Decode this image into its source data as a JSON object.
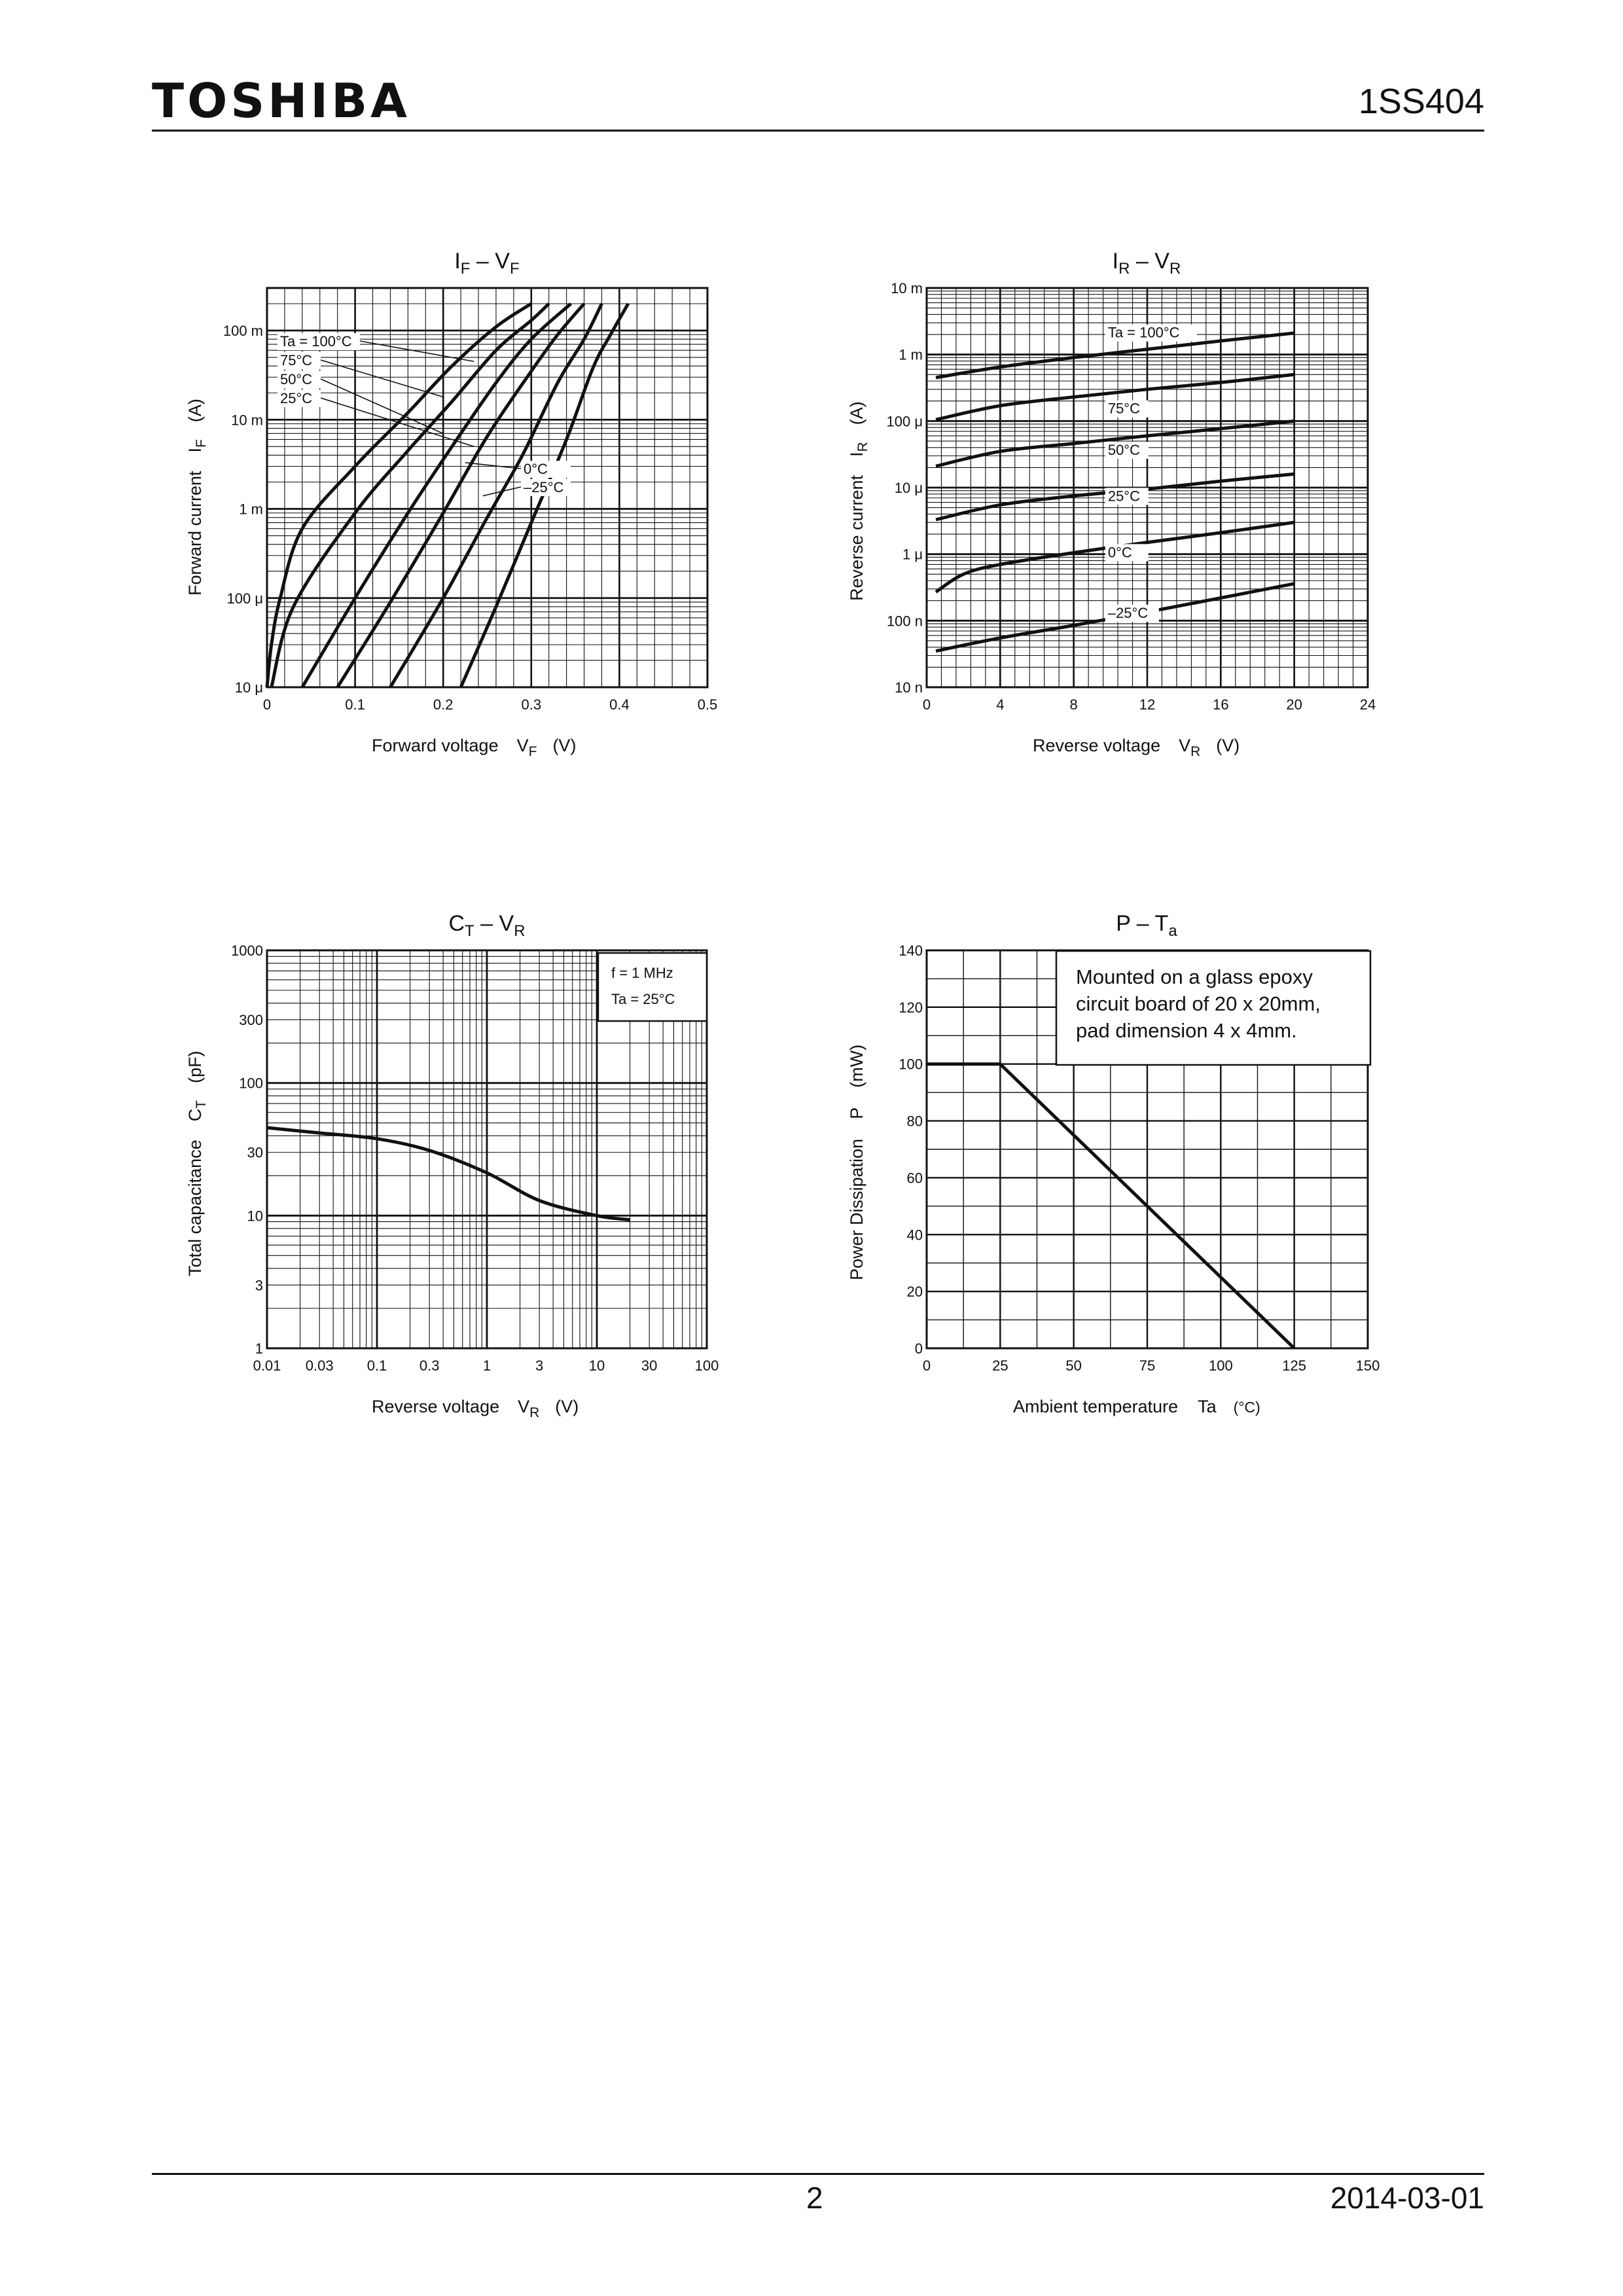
{
  "header": {
    "logo": "TOSHIBA",
    "part_number": "1SS404"
  },
  "footer": {
    "page": "2",
    "date": "2014-03-01"
  },
  "charts": {
    "if_vf": {
      "title_main": "I",
      "title_sub": "F",
      "title_dash": " – ",
      "title_main2": "V",
      "title_sub2": "F",
      "xlabel": "Forward voltage",
      "xsym": "V",
      "xsym_sub": "F",
      "xunit": "(V)",
      "ylabel": "Forward current",
      "ysym": "I",
      "ysym_sub": "F",
      "yunit": "(A)"
    },
    "ir_vr": {
      "title_main": "I",
      "title_sub": "R",
      "title_dash": " – ",
      "title_main2": "V",
      "title_sub2": "R",
      "xlabel": "Reverse voltage",
      "xsym": "V",
      "xsym_sub": "R",
      "xunit": "(V)",
      "ylabel": "Reverse current",
      "ysym": "I",
      "ysym_sub": "R",
      "yunit": "(A)"
    },
    "ct_vr": {
      "title_main": "C",
      "title_sub": "T",
      "title_dash": " – ",
      "title_main2": "V",
      "title_sub2": "R",
      "xlabel": "Reverse voltage",
      "xsym": "V",
      "xsym_sub": "R",
      "xunit": "(V)",
      "ylabel": "Total capacitance",
      "ysym": "C",
      "ysym_sub": "T",
      "yunit": "(pF)",
      "note_line1": "f = 1 MHz",
      "note_line2": "Ta = 25°C"
    },
    "p_ta": {
      "title_main": "P – T",
      "title_sub": "a",
      "xlabel": "Ambient temperature",
      "xsym": "Ta",
      "xunit": "(°C)",
      "ylabel": "Power Dissipation",
      "ysym": "P",
      "yunit": "(mW)",
      "note_lines": [
        "Mounted on a glass epoxy",
        "circuit board of 20 x 20mm,",
        "pad dimension 4 x 4mm."
      ]
    }
  },
  "chart_data": [
    {
      "type": "line",
      "id": "if_vf",
      "x_scale": "linear",
      "y_scale": "log",
      "xlim": [
        0,
        0.5
      ],
      "ylim": [
        1e-05,
        0.3
      ],
      "x_ticks": [
        "0",
        "0.1",
        "0.2",
        "0.3",
        "0.4",
        "0.5"
      ],
      "y_ticks": [
        {
          "v": 1e-05,
          "label": "10 μ"
        },
        {
          "v": 0.0001,
          "label": "100 μ"
        },
        {
          "v": 0.001,
          "label": "1 m"
        },
        {
          "v": 0.01,
          "label": "10 m"
        },
        {
          "v": 0.1,
          "label": "100 m"
        }
      ],
      "grid": true,
      "series": [
        {
          "name": "Ta = 100°C",
          "points": [
            [
              0.0,
              1e-05
            ],
            [
              0.005,
              3e-05
            ],
            [
              0.015,
              0.0001
            ],
            [
              0.04,
              0.0006
            ],
            [
              0.1,
              0.003
            ],
            [
              0.16,
              0.012
            ],
            [
              0.21,
              0.04
            ],
            [
              0.26,
              0.11
            ],
            [
              0.3,
              0.2
            ]
          ]
        },
        {
          "name": "75°C",
          "points": [
            [
              0.005,
              1e-05
            ],
            [
              0.03,
              8e-05
            ],
            [
              0.1,
              0.0009
            ],
            [
              0.16,
              0.0045
            ],
            [
              0.21,
              0.016
            ],
            [
              0.26,
              0.06
            ],
            [
              0.3,
              0.13
            ],
            [
              0.32,
              0.2
            ]
          ]
        },
        {
          "name": "50°C",
          "points": [
            [
              0.04,
              1e-05
            ],
            [
              0.1,
              0.0001
            ],
            [
              0.16,
              0.0009
            ],
            [
              0.21,
              0.005
            ],
            [
              0.26,
              0.026
            ],
            [
              0.3,
              0.08
            ],
            [
              0.345,
              0.2
            ]
          ]
        },
        {
          "name": "25°C",
          "points": [
            [
              0.08,
              1e-05
            ],
            [
              0.14,
              9e-05
            ],
            [
              0.2,
              0.0009
            ],
            [
              0.25,
              0.0065
            ],
            [
              0.3,
              0.035
            ],
            [
              0.33,
              0.09
            ],
            [
              0.36,
              0.2
            ]
          ]
        },
        {
          "name": "0°C",
          "points": [
            [
              0.14,
              1e-05
            ],
            [
              0.2,
              0.0001
            ],
            [
              0.25,
              0.0008
            ],
            [
              0.29,
              0.004
            ],
            [
              0.33,
              0.026
            ],
            [
              0.36,
              0.08
            ],
            [
              0.38,
              0.2
            ]
          ]
        },
        {
          "name": "–25°C",
          "points": [
            [
              0.22,
              1e-05
            ],
            [
              0.26,
              8e-05
            ],
            [
              0.3,
              0.0007
            ],
            [
              0.34,
              0.006
            ],
            [
              0.37,
              0.038
            ],
            [
              0.39,
              0.09
            ],
            [
              0.41,
              0.2
            ]
          ]
        }
      ]
    },
    {
      "type": "line",
      "id": "ir_vr",
      "x_scale": "linear",
      "y_scale": "log",
      "xlim": [
        0,
        24
      ],
      "ylim": [
        1e-08,
        0.01
      ],
      "x_ticks": [
        "0",
        "4",
        "8",
        "12",
        "16",
        "20",
        "24"
      ],
      "y_ticks": [
        {
          "v": 1e-08,
          "label": "10 n"
        },
        {
          "v": 1e-07,
          "label": "100 n"
        },
        {
          "v": 1e-06,
          "label": "1 μ"
        },
        {
          "v": 1e-05,
          "label": "10 μ"
        },
        {
          "v": 0.0001,
          "label": "100 μ"
        },
        {
          "v": 0.001,
          "label": "1 m"
        },
        {
          "v": 0.01,
          "label": "10 m"
        }
      ],
      "grid": true,
      "series": [
        {
          "name": "Ta = 100°C",
          "points": [
            [
              0.5,
              0.00045
            ],
            [
              4,
              0.00065
            ],
            [
              8,
              0.0009
            ],
            [
              12,
              0.0012
            ],
            [
              16,
              0.0016
            ],
            [
              20,
              0.0021
            ]
          ]
        },
        {
          "name": "75°C",
          "points": [
            [
              0.5,
              0.000105
            ],
            [
              4,
              0.00017
            ],
            [
              8,
              0.00023
            ],
            [
              12,
              0.0003
            ],
            [
              16,
              0.00038
            ],
            [
              20,
              0.0005
            ]
          ]
        },
        {
          "name": "50°C",
          "points": [
            [
              0.5,
              2.1e-05
            ],
            [
              4,
              3.5e-05
            ],
            [
              8,
              4.6e-05
            ],
            [
              12,
              6e-05
            ],
            [
              16,
              7.7e-05
            ],
            [
              20,
              0.0001
            ]
          ]
        },
        {
          "name": "25°C",
          "points": [
            [
              0.5,
              3.3e-06
            ],
            [
              4,
              5.5e-06
            ],
            [
              8,
              7.5e-06
            ],
            [
              12,
              9.5e-06
            ],
            [
              16,
              1.25e-05
            ],
            [
              20,
              1.6e-05
            ]
          ]
        },
        {
          "name": "0°C",
          "points": [
            [
              0.5,
              2.7e-07
            ],
            [
              2,
              5e-07
            ],
            [
              4,
              7e-07
            ],
            [
              8,
              1.05e-06
            ],
            [
              12,
              1.5e-06
            ],
            [
              16,
              2.1e-06
            ],
            [
              20,
              3e-06
            ]
          ]
        },
        {
          "name": "–25°C",
          "points": [
            [
              0.5,
              3.5e-08
            ],
            [
              4,
              5.5e-08
            ],
            [
              8,
              8.5e-08
            ],
            [
              12,
              1.35e-07
            ],
            [
              16,
              2.2e-07
            ],
            [
              20,
              3.6e-07
            ]
          ]
        }
      ]
    },
    {
      "type": "line",
      "id": "ct_vr",
      "x_scale": "log",
      "y_scale": "log",
      "xlim": [
        0.01,
        100
      ],
      "ylim": [
        1,
        1000
      ],
      "x_ticks": [
        {
          "v": 0.01,
          "label": "0.01"
        },
        {
          "v": 0.03,
          "label": "0.03"
        },
        {
          "v": 0.1,
          "label": "0.1"
        },
        {
          "v": 0.3,
          "label": "0.3"
        },
        {
          "v": 1,
          "label": "1"
        },
        {
          "v": 3,
          "label": "3"
        },
        {
          "v": 10,
          "label": "10"
        },
        {
          "v": 30,
          "label": "30"
        },
        {
          "v": 100,
          "label": "100"
        }
      ],
      "y_ticks": [
        {
          "v": 1,
          "label": "1"
        },
        {
          "v": 3,
          "label": "3"
        },
        {
          "v": 10,
          "label": "10"
        },
        {
          "v": 30,
          "label": "30"
        },
        {
          "v": 100,
          "label": "100"
        },
        {
          "v": 300,
          "label": "300"
        },
        {
          "v": 1000,
          "label": "1000"
        }
      ],
      "grid": true,
      "series": [
        {
          "name": "",
          "points": [
            [
              0.01,
              46
            ],
            [
              0.03,
              42
            ],
            [
              0.1,
              38
            ],
            [
              0.3,
              31
            ],
            [
              1,
              21
            ],
            [
              3,
              13
            ],
            [
              10,
              10
            ],
            [
              20,
              9.3
            ]
          ]
        }
      ]
    },
    {
      "type": "line",
      "id": "p_ta",
      "x_scale": "linear",
      "y_scale": "linear",
      "xlim": [
        0,
        150
      ],
      "ylim": [
        0,
        140
      ],
      "x_ticks": [
        "0",
        "25",
        "50",
        "75",
        "100",
        "125",
        "150"
      ],
      "y_ticks": [
        "0",
        "20",
        "40",
        "60",
        "80",
        "100",
        "120",
        "140"
      ],
      "grid": true,
      "series": [
        {
          "name": "",
          "points": [
            [
              0,
              100
            ],
            [
              25,
              100
            ],
            [
              125,
              0
            ]
          ]
        }
      ]
    }
  ]
}
